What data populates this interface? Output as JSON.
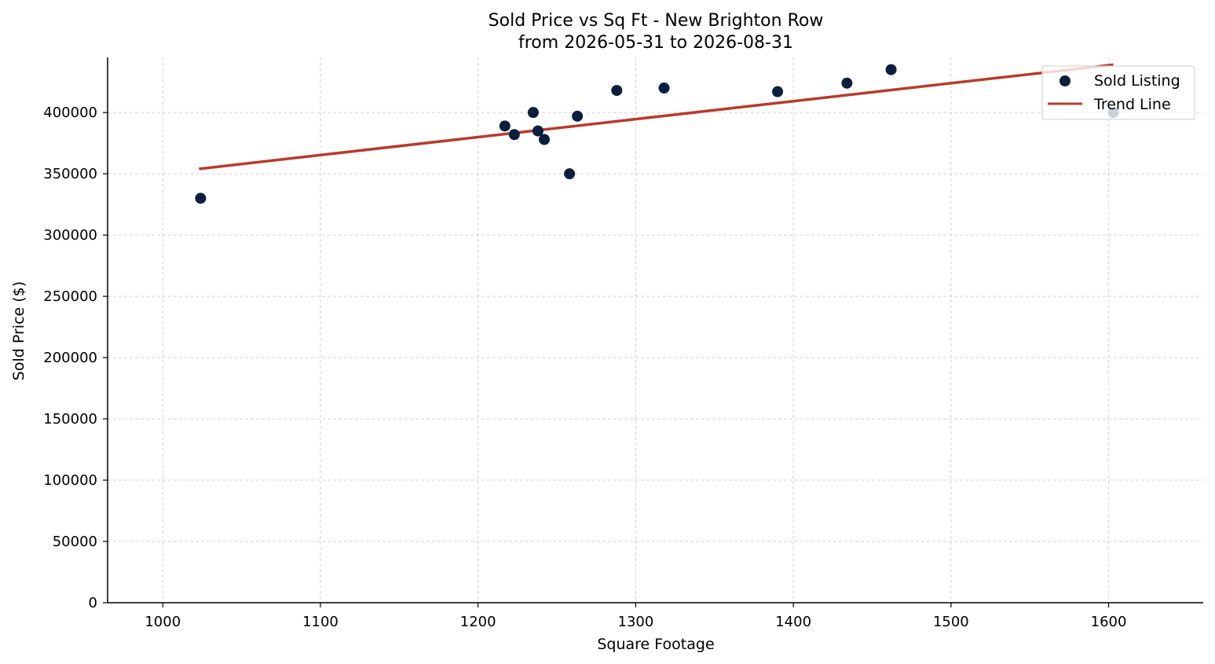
{
  "chart_data": {
    "type": "scatter",
    "title": "Sold Price vs Sq Ft - New Brighton Row",
    "subtitle": "from 2026-05-31 to 2026-08-31",
    "xlabel": "Square Footage",
    "ylabel": "Sold Price ($)",
    "xlim": [
      965,
      1660
    ],
    "ylim": [
      0,
      445000
    ],
    "x_ticks": [
      1000,
      1100,
      1200,
      1300,
      1400,
      1500,
      1600
    ],
    "y_ticks": [
      0,
      50000,
      100000,
      150000,
      200000,
      250000,
      300000,
      350000,
      400000
    ],
    "grid": true,
    "legend_position": "top-right",
    "series": [
      {
        "name": "Sold Listing",
        "kind": "scatter",
        "color": "#0d1f3c",
        "points": [
          {
            "x": 1024,
            "y": 330000
          },
          {
            "x": 1217,
            "y": 389000
          },
          {
            "x": 1223,
            "y": 382000
          },
          {
            "x": 1235,
            "y": 400000
          },
          {
            "x": 1238,
            "y": 385000
          },
          {
            "x": 1242,
            "y": 378000
          },
          {
            "x": 1258,
            "y": 350000
          },
          {
            "x": 1263,
            "y": 397000
          },
          {
            "x": 1288,
            "y": 418000
          },
          {
            "x": 1318,
            "y": 420000
          },
          {
            "x": 1390,
            "y": 417000
          },
          {
            "x": 1434,
            "y": 424000
          },
          {
            "x": 1462,
            "y": 435000
          },
          {
            "x": 1603,
            "y": 400000
          }
        ]
      },
      {
        "name": "Trend Line",
        "kind": "line",
        "color": "#b83a2e",
        "points": [
          {
            "x": 1023,
            "y": 354000
          },
          {
            "x": 1603,
            "y": 439000
          }
        ]
      }
    ]
  }
}
